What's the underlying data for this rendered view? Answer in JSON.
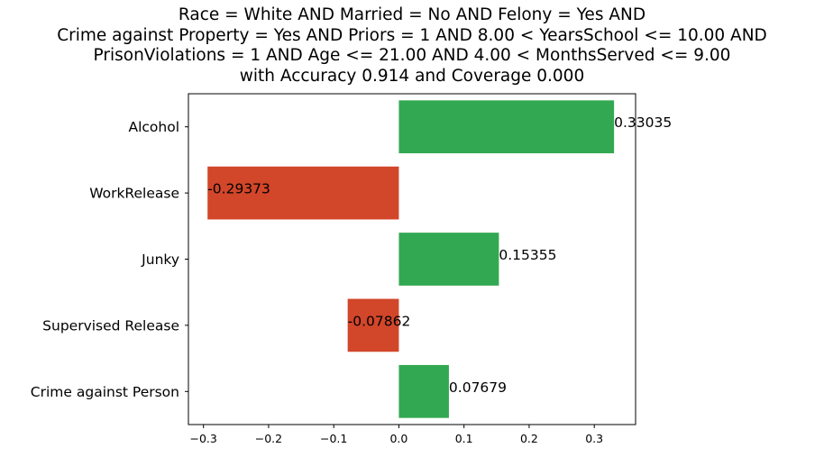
{
  "chart_data": {
    "type": "bar",
    "orientation": "horizontal",
    "title_lines": [
      "Race = White AND Married = No AND Felony = Yes AND",
      "Crime against Property = Yes AND Priors = 1 AND 8.00 < YearsSchool <= 10.00 AND",
      "PrisonViolations = 1 AND Age <= 21.00 AND 4.00 < MonthsServed <= 9.00",
      "with Accuracy 0.914 and Coverage 0.000"
    ],
    "categories": [
      "Alcohol",
      "WorkRelease",
      "Junky",
      "Supervised Release",
      "Crime against Person"
    ],
    "values": [
      0.33035,
      -0.29373,
      0.15355,
      -0.07862,
      0.07679
    ],
    "value_labels": [
      "0.33035",
      "-0.29373",
      "0.15355",
      "-0.07862",
      "0.07679"
    ],
    "xlim": [
      -0.3231,
      0.3634
    ],
    "xticks": [
      -0.3,
      -0.2,
      -0.1,
      0.0,
      0.1,
      0.2,
      0.3
    ],
    "xtick_labels": [
      "−0.3",
      "−0.2",
      "−0.1",
      "0.0",
      "0.1",
      "0.2",
      "0.3"
    ],
    "positive_color": "#33a852",
    "negative_color": "#d2462a",
    "grid": false,
    "legend": "none"
  }
}
